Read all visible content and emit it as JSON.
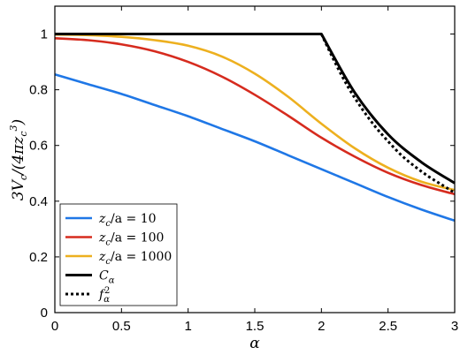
{
  "chart_data": {
    "type": "line",
    "title": "",
    "xlabel": "α",
    "ylabel": "3V_c/(4πz_c^3)",
    "xlim": [
      0,
      3
    ],
    "ylim": [
      0,
      1.1
    ],
    "xticks": [
      "0",
      "0.5",
      "1",
      "1.5",
      "2",
      "2.5",
      "3"
    ],
    "yticks": [
      "0",
      "0.2",
      "0.4",
      "0.6",
      "0.8",
      "1"
    ],
    "grid": false,
    "legend_position": "bottom-left",
    "series": [
      {
        "name": "z_c/a = 10",
        "color": "#1f77e6",
        "dash": "solid",
        "x": [
          0,
          0.25,
          0.5,
          0.75,
          1.0,
          1.25,
          1.5,
          1.75,
          2.0,
          2.25,
          2.5,
          2.75,
          3.0
        ],
        "y": [
          0.855,
          0.82,
          0.785,
          0.745,
          0.705,
          0.66,
          0.615,
          0.565,
          0.515,
          0.465,
          0.415,
          0.37,
          0.33
        ]
      },
      {
        "name": "z_c/a = 100",
        "color": "#d62b1e",
        "dash": "solid",
        "x": [
          0,
          0.25,
          0.5,
          0.75,
          1.0,
          1.25,
          1.5,
          1.75,
          2.0,
          2.25,
          2.5,
          2.75,
          3.0
        ],
        "y": [
          0.985,
          0.978,
          0.963,
          0.938,
          0.9,
          0.848,
          0.782,
          0.707,
          0.628,
          0.56,
          0.502,
          0.458,
          0.425
        ]
      },
      {
        "name": "z_c/a = 1000",
        "color": "#edb01f",
        "dash": "solid",
        "x": [
          0,
          0.25,
          0.5,
          0.75,
          1.0,
          1.25,
          1.5,
          1.75,
          2.0,
          2.25,
          2.5,
          2.75,
          3.0
        ],
        "y": [
          0.998,
          0.996,
          0.99,
          0.978,
          0.958,
          0.92,
          0.858,
          0.775,
          0.678,
          0.59,
          0.52,
          0.47,
          0.44
        ]
      },
      {
        "name": "C_α",
        "color": "#000000",
        "dash": "solid",
        "x": [
          0,
          0.5,
          1.0,
          1.5,
          2.0,
          2.25,
          2.5,
          2.75,
          3.0
        ],
        "y": [
          1.0,
          1.0,
          1.0,
          1.0,
          1.0,
          0.79,
          0.64,
          0.54,
          0.465
        ]
      },
      {
        "name": "f_α^2",
        "color": "#000000",
        "dash": "dotted",
        "x": [
          2.0,
          2.1,
          2.2,
          2.3,
          2.4,
          2.5,
          2.6,
          2.7,
          2.8,
          2.9,
          3.0
        ],
        "y": [
          1.0,
          0.9,
          0.81,
          0.735,
          0.67,
          0.615,
          0.565,
          0.525,
          0.49,
          0.46,
          0.43
        ]
      }
    ],
    "legend": [
      {
        "pre": "z",
        "sub": "c",
        "post": "/a = 10"
      },
      {
        "pre": "z",
        "sub": "c",
        "post": "/a = 100"
      },
      {
        "pre": "z",
        "sub": "c",
        "post": "/a = 1000"
      },
      {
        "pre": "C",
        "sub": "α",
        "post": ""
      },
      {
        "pre": "f",
        "sub": "α",
        "sup": "2",
        "post": ""
      }
    ]
  }
}
